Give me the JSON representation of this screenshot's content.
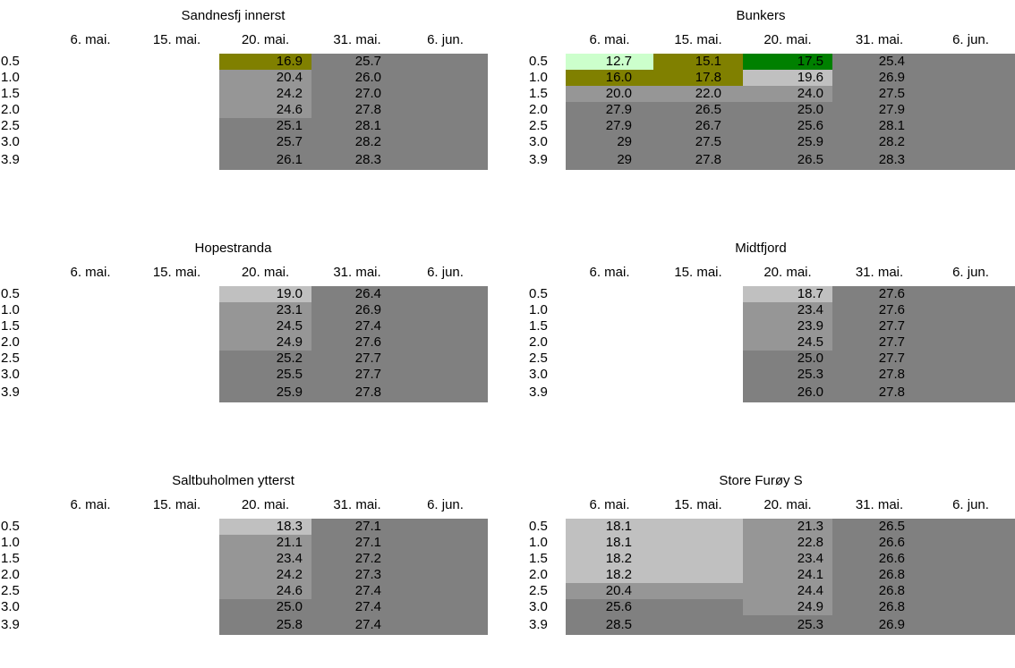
{
  "panels": [
    {
      "title": "Sandnesfj innerst",
      "columns": [
        "6. mai.",
        "15. mai.",
        "20. mai.",
        "31. mai.",
        "6. jun."
      ],
      "rows": [
        "0.5",
        "1.0",
        "1.5",
        "2.0",
        "2.5",
        "3.0",
        "3.9"
      ],
      "cells": [
        [
          null,
          null,
          "16.9",
          "25.7",
          null
        ],
        [
          null,
          null,
          "20.4",
          "26.0",
          null
        ],
        [
          null,
          null,
          "24.2",
          "27.0",
          null
        ],
        [
          null,
          null,
          "24.6",
          "27.8",
          null
        ],
        [
          null,
          null,
          "25.1",
          "28.1",
          null
        ],
        [
          null,
          null,
          "25.7",
          "28.2",
          null
        ],
        [
          null,
          null,
          "26.1",
          "28.3",
          null
        ]
      ],
      "fills": [
        [
          null,
          null,
          "#808000",
          "#808080",
          "#808080"
        ],
        [
          null,
          null,
          "#969696",
          "#808080",
          "#808080"
        ],
        [
          null,
          null,
          "#969696",
          "#808080",
          "#808080"
        ],
        [
          null,
          null,
          "#969696",
          "#808080",
          "#808080"
        ],
        [
          null,
          null,
          "#808080",
          "#808080",
          "#808080"
        ],
        [
          null,
          null,
          "#808080",
          "#808080",
          "#808080"
        ],
        [
          null,
          null,
          "#808080",
          "#808080",
          "#808080"
        ]
      ]
    },
    {
      "title": "Bunkers",
      "columns": [
        "6. mai.",
        "15. mai.",
        "20. mai.",
        "31. mai.",
        "6. jun."
      ],
      "rows": [
        "0.5",
        "1.0",
        "1.5",
        "2.0",
        "2.5",
        "3.0",
        "3.9"
      ],
      "cells": [
        [
          "12.7",
          "15.1",
          "17.5",
          "25.4",
          null
        ],
        [
          "16.0",
          "17.8",
          "19.6",
          "26.9",
          null
        ],
        [
          "20.0",
          "22.0",
          "24.0",
          "27.5",
          null
        ],
        [
          "27.9",
          "26.5",
          "25.0",
          "27.9",
          null
        ],
        [
          "27.9",
          "26.7",
          "25.6",
          "28.1",
          null
        ],
        [
          "29",
          "27.5",
          "25.9",
          "28.2",
          null
        ],
        [
          "29",
          "27.8",
          "26.5",
          "28.3",
          null
        ]
      ],
      "fills": [
        [
          "#ccffcc",
          "#808000",
          "#008000",
          "#808080",
          "#808080"
        ],
        [
          "#808000",
          "#808000",
          "#c0c0c0",
          "#808080",
          "#808080"
        ],
        [
          "#969696",
          "#969696",
          "#969696",
          "#808080",
          "#808080"
        ],
        [
          "#808080",
          "#808080",
          "#808080",
          "#808080",
          "#808080"
        ],
        [
          "#808080",
          "#808080",
          "#808080",
          "#808080",
          "#808080"
        ],
        [
          "#808080",
          "#808080",
          "#808080",
          "#808080",
          "#808080"
        ],
        [
          "#808080",
          "#808080",
          "#808080",
          "#808080",
          "#808080"
        ]
      ]
    },
    {
      "title": "Hopestranda",
      "columns": [
        "6. mai.",
        "15. mai.",
        "20. mai.",
        "31. mai.",
        "6. jun."
      ],
      "rows": [
        "0.5",
        "1.0",
        "1.5",
        "2.0",
        "2.5",
        "3.0",
        "3.9"
      ],
      "cells": [
        [
          null,
          null,
          "19.0",
          "26.4",
          null
        ],
        [
          null,
          null,
          "23.1",
          "26.9",
          null
        ],
        [
          null,
          null,
          "24.5",
          "27.4",
          null
        ],
        [
          null,
          null,
          "24.9",
          "27.6",
          null
        ],
        [
          null,
          null,
          "25.2",
          "27.7",
          null
        ],
        [
          null,
          null,
          "25.5",
          "27.7",
          null
        ],
        [
          null,
          null,
          "25.9",
          "27.8",
          null
        ]
      ],
      "fills": [
        [
          null,
          null,
          "#c0c0c0",
          "#808080",
          "#808080"
        ],
        [
          null,
          null,
          "#969696",
          "#808080",
          "#808080"
        ],
        [
          null,
          null,
          "#969696",
          "#808080",
          "#808080"
        ],
        [
          null,
          null,
          "#969696",
          "#808080",
          "#808080"
        ],
        [
          null,
          null,
          "#808080",
          "#808080",
          "#808080"
        ],
        [
          null,
          null,
          "#808080",
          "#808080",
          "#808080"
        ],
        [
          null,
          null,
          "#808080",
          "#808080",
          "#808080"
        ]
      ]
    },
    {
      "title": "Midtfjord",
      "columns": [
        "6. mai.",
        "15. mai.",
        "20. mai.",
        "31. mai.",
        "6. jun."
      ],
      "rows": [
        "0.5",
        "1.0",
        "1.5",
        "2.0",
        "2.5",
        "3.0",
        "3.9"
      ],
      "cells": [
        [
          null,
          null,
          "18.7",
          "27.6",
          null
        ],
        [
          null,
          null,
          "23.4",
          "27.6",
          null
        ],
        [
          null,
          null,
          "23.9",
          "27.7",
          null
        ],
        [
          null,
          null,
          "24.5",
          "27.7",
          null
        ],
        [
          null,
          null,
          "25.0",
          "27.7",
          null
        ],
        [
          null,
          null,
          "25.3",
          "27.8",
          null
        ],
        [
          null,
          null,
          "26.0",
          "27.8",
          null
        ]
      ],
      "fills": [
        [
          null,
          null,
          "#c0c0c0",
          "#808080",
          "#808080"
        ],
        [
          null,
          null,
          "#969696",
          "#808080",
          "#808080"
        ],
        [
          null,
          null,
          "#969696",
          "#808080",
          "#808080"
        ],
        [
          null,
          null,
          "#969696",
          "#808080",
          "#808080"
        ],
        [
          null,
          null,
          "#808080",
          "#808080",
          "#808080"
        ],
        [
          null,
          null,
          "#808080",
          "#808080",
          "#808080"
        ],
        [
          null,
          null,
          "#808080",
          "#808080",
          "#808080"
        ]
      ]
    },
    {
      "title": "Saltbuholmen ytterst",
      "columns": [
        "6. mai.",
        "15. mai.",
        "20. mai.",
        "31. mai.",
        "6. jun."
      ],
      "rows": [
        "0.5",
        "1.0",
        "1.5",
        "2.0",
        "2.5",
        "3.0",
        "3.9"
      ],
      "cells": [
        [
          null,
          null,
          "18.3",
          "27.1",
          null
        ],
        [
          null,
          null,
          "21.1",
          "27.1",
          null
        ],
        [
          null,
          null,
          "23.4",
          "27.2",
          null
        ],
        [
          null,
          null,
          "24.2",
          "27.3",
          null
        ],
        [
          null,
          null,
          "24.6",
          "27.4",
          null
        ],
        [
          null,
          null,
          "25.0",
          "27.4",
          null
        ],
        [
          null,
          null,
          "25.8",
          "27.4",
          null
        ]
      ],
      "fills": [
        [
          null,
          null,
          "#c0c0c0",
          "#808080",
          "#808080"
        ],
        [
          null,
          null,
          "#969696",
          "#808080",
          "#808080"
        ],
        [
          null,
          null,
          "#969696",
          "#808080",
          "#808080"
        ],
        [
          null,
          null,
          "#969696",
          "#808080",
          "#808080"
        ],
        [
          null,
          null,
          "#969696",
          "#808080",
          "#808080"
        ],
        [
          null,
          null,
          "#808080",
          "#808080",
          "#808080"
        ],
        [
          null,
          null,
          "#808080",
          "#808080",
          "#808080"
        ]
      ]
    },
    {
      "title": "Store Furøy S",
      "columns": [
        "6. mai.",
        "15. mai.",
        "20. mai.",
        "31. mai.",
        "6. jun."
      ],
      "rows": [
        "0.5",
        "1.0",
        "1.5",
        "2.0",
        "2.5",
        "3.0",
        "3.9"
      ],
      "cells": [
        [
          "18.1",
          null,
          "21.3",
          "26.5",
          null
        ],
        [
          "18.1",
          null,
          "22.8",
          "26.6",
          null
        ],
        [
          "18.2",
          null,
          "23.4",
          "26.6",
          null
        ],
        [
          "18.2",
          null,
          "24.1",
          "26.8",
          null
        ],
        [
          "20.4",
          null,
          "24.4",
          "26.8",
          null
        ],
        [
          "25.6",
          null,
          "24.9",
          "26.8",
          null
        ],
        [
          "28.5",
          null,
          "25.3",
          "26.9",
          null
        ]
      ],
      "fills": [
        [
          "#c0c0c0",
          "#c0c0c0",
          "#969696",
          "#808080",
          "#808080"
        ],
        [
          "#c0c0c0",
          "#c0c0c0",
          "#969696",
          "#808080",
          "#808080"
        ],
        [
          "#c0c0c0",
          "#c0c0c0",
          "#969696",
          "#808080",
          "#808080"
        ],
        [
          "#c0c0c0",
          "#c0c0c0",
          "#969696",
          "#808080",
          "#808080"
        ],
        [
          "#969696",
          "#969696",
          "#969696",
          "#808080",
          "#808080"
        ],
        [
          "#808080",
          "#808080",
          "#969696",
          "#808080",
          "#808080"
        ],
        [
          "#808080",
          "#808080",
          "#808080",
          "#808080",
          "#808080"
        ]
      ]
    }
  ]
}
